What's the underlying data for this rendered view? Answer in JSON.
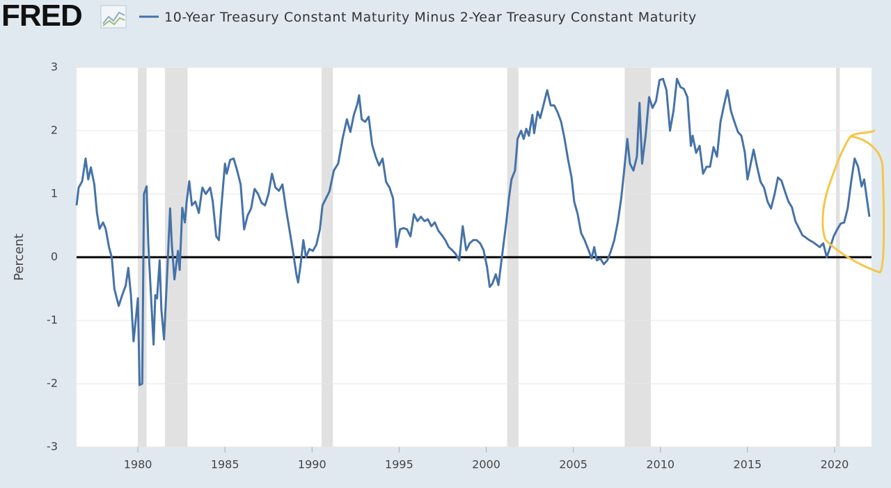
{
  "chart_data": {
    "type": "line",
    "brand": "FRED",
    "ylabel": "Percent",
    "xlim": [
      1976.48,
      2022.12
    ],
    "ylim": [
      -3,
      3
    ],
    "xticks": [
      1980,
      1985,
      1990,
      1995,
      2000,
      2005,
      2010,
      2015,
      2020
    ],
    "yticks": [
      3,
      2,
      1,
      0,
      -1,
      -2,
      -3
    ],
    "grid": true,
    "recessions": [
      [
        1980.0,
        1980.5
      ],
      [
        1981.55,
        1982.85
      ],
      [
        1990.55,
        1991.2
      ],
      [
        2001.2,
        2001.85
      ],
      [
        2007.95,
        2009.45
      ],
      [
        2020.08,
        2020.3
      ]
    ],
    "x": [
      1976.48,
      1976.6,
      1976.8,
      1977.0,
      1977.15,
      1977.3,
      1977.5,
      1977.65,
      1977.8,
      1978.0,
      1978.15,
      1978.35,
      1978.5,
      1978.65,
      1978.9,
      1979.1,
      1979.3,
      1979.45,
      1979.6,
      1979.75,
      1979.9,
      1980.0,
      1980.1,
      1980.25,
      1980.35,
      1980.5,
      1980.6,
      1980.7,
      1980.9,
      1981.0,
      1981.1,
      1981.25,
      1981.35,
      1981.5,
      1981.65,
      1981.85,
      1981.95,
      1982.1,
      1982.3,
      1982.4,
      1982.55,
      1982.7,
      1982.8,
      1982.95,
      1983.1,
      1983.3,
      1983.5,
      1983.7,
      1983.9,
      1984.15,
      1984.3,
      1984.5,
      1984.65,
      1984.8,
      1985.0,
      1985.1,
      1985.3,
      1985.5,
      1985.7,
      1985.9,
      1986.1,
      1986.3,
      1986.5,
      1986.7,
      1986.9,
      1987.1,
      1987.3,
      1987.5,
      1987.7,
      1987.9,
      1988.1,
      1988.3,
      1988.5,
      1988.7,
      1988.9,
      1989.1,
      1989.2,
      1989.35,
      1989.5,
      1989.65,
      1989.85,
      1990.05,
      1990.25,
      1990.45,
      1990.6,
      1990.8,
      1991.0,
      1991.25,
      1991.5,
      1991.75,
      1992.0,
      1992.2,
      1992.4,
      1992.6,
      1992.7,
      1992.85,
      1993.05,
      1993.25,
      1993.45,
      1993.65,
      1993.85,
      1994.05,
      1994.25,
      1994.45,
      1994.65,
      1994.85,
      1995.05,
      1995.25,
      1995.45,
      1995.65,
      1995.85,
      1996.05,
      1996.25,
      1996.45,
      1996.65,
      1996.85,
      1997.05,
      1997.25,
      1997.45,
      1997.65,
      1997.85,
      1998.05,
      1998.25,
      1998.45,
      1998.65,
      1998.85,
      1999.05,
      1999.25,
      1999.45,
      1999.65,
      1999.85,
      2000.05,
      2000.2,
      2000.35,
      2000.55,
      2000.7,
      2000.85,
      2001.0,
      2001.15,
      2001.3,
      2001.45,
      2001.65,
      2001.8,
      2002.0,
      2002.15,
      2002.3,
      2002.45,
      2002.65,
      2002.75,
      2002.95,
      2003.1,
      2003.3,
      2003.5,
      2003.7,
      2003.9,
      2004.1,
      2004.3,
      2004.5,
      2004.7,
      2004.9,
      2005.05,
      2005.25,
      2005.45,
      2005.65,
      2005.85,
      2006.05,
      2006.2,
      2006.35,
      2006.55,
      2006.75,
      2006.95,
      2007.15,
      2007.35,
      2007.55,
      2007.75,
      2007.9,
      2008.1,
      2008.25,
      2008.45,
      2008.65,
      2008.8,
      2008.95,
      2009.15,
      2009.35,
      2009.55,
      2009.75,
      2009.95,
      2010.15,
      2010.35,
      2010.55,
      2010.75,
      2010.95,
      2011.15,
      2011.35,
      2011.55,
      2011.75,
      2011.85,
      2012.05,
      2012.25,
      2012.45,
      2012.65,
      2012.85,
      2013.05,
      2013.25,
      2013.45,
      2013.65,
      2013.85,
      2014.05,
      2014.25,
      2014.45,
      2014.65,
      2014.85,
      2015.0,
      2015.15,
      2015.35,
      2015.55,
      2015.75,
      2015.95,
      2016.15,
      2016.35,
      2016.55,
      2016.75,
      2016.95,
      2017.15,
      2017.35,
      2017.55,
      2017.75,
      2017.95,
      2018.15,
      2018.35,
      2018.55,
      2018.75,
      2018.95,
      2019.15,
      2019.35,
      2019.55,
      2019.75,
      2019.95,
      2020.15,
      2020.35,
      2020.55,
      2020.75,
      2020.95,
      2021.15,
      2021.35,
      2021.55,
      2021.7,
      2021.85,
      2022.0
    ],
    "series": [
      {
        "name": "10-Year Treasury Constant Maturity Minus 2-Year Treasury Constant Maturity",
        "color": "#4572a7",
        "values": [
          0.82,
          1.1,
          1.2,
          1.56,
          1.23,
          1.42,
          1.15,
          0.7,
          0.45,
          0.55,
          0.45,
          0.15,
          0,
          -0.5,
          -0.77,
          -0.6,
          -0.45,
          -0.17,
          -0.6,
          -1.33,
          -0.93,
          -0.65,
          -2.02,
          -2.0,
          1.0,
          1.12,
          0.2,
          -0.33,
          -1.38,
          -0.6,
          -0.65,
          -0.05,
          -0.83,
          -1.3,
          -0.45,
          0.77,
          0.2,
          -0.35,
          0.1,
          -0.2,
          0.78,
          0.55,
          0.88,
          1.2,
          0.82,
          0.88,
          0.7,
          1.1,
          1.0,
          1.1,
          0.88,
          0.33,
          0.27,
          0.82,
          1.48,
          1.32,
          1.54,
          1.56,
          1.37,
          1.15,
          0.44,
          0.66,
          0.77,
          1.08,
          1.0,
          0.86,
          0.82,
          1.0,
          1.32,
          1.1,
          1.05,
          1.15,
          0.77,
          0.44,
          0.1,
          -0.27,
          -0.4,
          -0.1,
          0.27,
          0,
          0.13,
          0.1,
          0.2,
          0.44,
          0.82,
          0.93,
          1.04,
          1.37,
          1.48,
          1.87,
          2.18,
          1.98,
          2.25,
          2.42,
          2.56,
          2.18,
          2.14,
          2.22,
          1.78,
          1.59,
          1.45,
          1.56,
          1.19,
          1.1,
          0.93,
          0.16,
          0.44,
          0.46,
          0.44,
          0.33,
          0.68,
          0.57,
          0.64,
          0.57,
          0.6,
          0.49,
          0.55,
          0.42,
          0.35,
          0.27,
          0.16,
          0.11,
          0.05,
          -0.05,
          0.49,
          0.11,
          0.22,
          0.27,
          0.27,
          0.22,
          0.11,
          -0.16,
          -0.47,
          -0.42,
          -0.27,
          -0.44,
          -0.11,
          0.22,
          0.55,
          0.93,
          1.23,
          1.37,
          1.87,
          2.0,
          1.87,
          2.03,
          1.92,
          2.25,
          1.96,
          2.3,
          2.2,
          2.42,
          2.64,
          2.4,
          2.4,
          2.29,
          2.14,
          1.87,
          1.54,
          1.26,
          0.88,
          0.68,
          0.38,
          0.27,
          0.13,
          -0.02,
          0.16,
          -0.05,
          -0.02,
          -0.11,
          -0.05,
          0.09,
          0.27,
          0.55,
          0.93,
          1.32,
          1.87,
          1.48,
          1.37,
          1.59,
          2.44,
          1.48,
          1.92,
          2.53,
          2.36,
          2.47,
          2.8,
          2.82,
          2.64,
          2.0,
          2.31,
          2.82,
          2.69,
          2.66,
          2.53,
          1.76,
          1.92,
          1.65,
          1.76,
          1.32,
          1.43,
          1.43,
          1.74,
          1.59,
          2.14,
          2.4,
          2.64,
          2.31,
          2.14,
          1.98,
          1.92,
          1.65,
          1.23,
          1.43,
          1.7,
          1.43,
          1.19,
          1.1,
          0.88,
          0.77,
          0.99,
          1.26,
          1.21,
          1.04,
          0.88,
          0.79,
          0.57,
          0.46,
          0.35,
          0.31,
          0.27,
          0.24,
          0.2,
          0.16,
          0.22,
          0.0,
          0.16,
          0.33,
          0.44,
          0.53,
          0.55,
          0.77,
          1.19,
          1.56,
          1.43,
          1.12,
          1.23,
          0.93,
          0.64
        ]
      }
    ]
  }
}
